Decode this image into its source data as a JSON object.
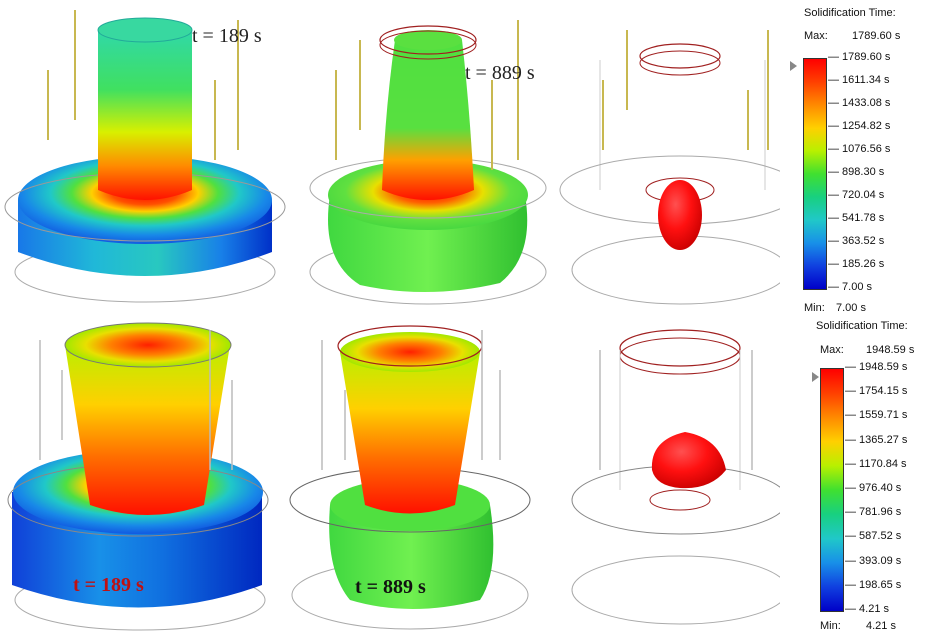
{
  "scene": {
    "top_row_time_labels": [
      "t = 189 s",
      "t = 889 s"
    ],
    "bottom_row_time_labels": [
      "t = 189 s",
      "t = 889 s"
    ]
  },
  "legends": [
    {
      "title": "Solidification Time:",
      "max_label": "Max:",
      "max_value": "1789.60 s",
      "min_label": "Min:",
      "min_value": "7.00 s",
      "ticks": [
        "1789.60 s",
        "1611.34 s",
        "1433.08 s",
        "1254.82 s",
        "1076.56 s",
        "898.30 s",
        "720.04 s",
        "541.78 s",
        "363.52 s",
        "185.26 s",
        "7.00 s"
      ]
    },
    {
      "title": "Solidification Time:",
      "max_label": "Max:",
      "max_value": "1948.59 s",
      "min_label": "Min:",
      "min_value": "4.21 s",
      "ticks": [
        "1948.59 s",
        "1754.15 s",
        "1559.71 s",
        "1365.27 s",
        "1170.84 s",
        "976.40 s",
        "781.96 s",
        "587.52 s",
        "393.09 s",
        "198.65 s",
        "4.21 s"
      ]
    }
  ],
  "colors": {
    "scale": [
      "#ff0000",
      "#ff4000",
      "#ff8a00",
      "#ffd000",
      "#b8f000",
      "#40e030",
      "#18d080",
      "#20c8c8",
      "#1890e8",
      "#1040e0",
      "#0000c8"
    ]
  }
}
